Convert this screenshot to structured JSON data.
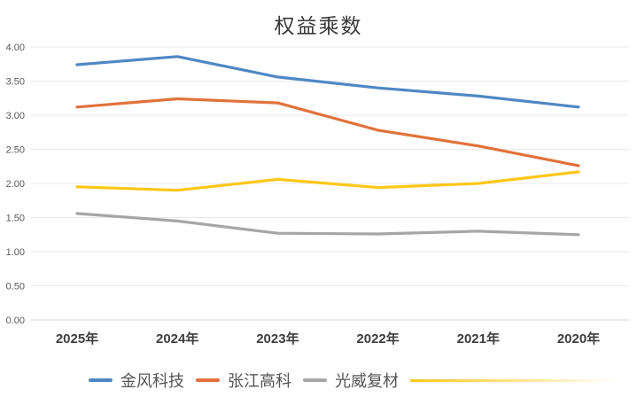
{
  "chart_data": {
    "type": "line",
    "title": "权益乘数",
    "categories": [
      "2025年",
      "2024年",
      "2023年",
      "2022年",
      "2021年",
      "2020年"
    ],
    "series": [
      {
        "name": "金风科技",
        "color": "#4f87c5",
        "values": [
          3.74,
          3.86,
          3.56,
          3.4,
          3.28,
          3.12
        ]
      },
      {
        "name": "张江高科",
        "color": "#e1723a",
        "values": [
          3.12,
          3.24,
          3.18,
          2.78,
          2.55,
          2.26
        ]
      },
      {
        "name": "光威复材",
        "color": "#a6a6a6",
        "values": [
          1.56,
          1.45,
          1.27,
          1.26,
          1.3,
          1.25
        ]
      },
      {
        "name": "",
        "color": "#ffc718",
        "values": [
          1.95,
          1.9,
          2.06,
          1.94,
          2.0,
          2.17
        ]
      }
    ],
    "ylim": [
      0,
      4
    ],
    "ytick_step": 0.5,
    "ytick_labels": [
      "0.00",
      "0.50",
      "1.00",
      "1.50",
      "2.00",
      "2.50",
      "3.00",
      "3.50",
      "4.00"
    ],
    "xlabel": "",
    "ylabel": "",
    "grid": true,
    "legend_position": "bottom",
    "colors": {
      "gridline": "#e9e9e9",
      "baseline": "#d5d5d5",
      "tick_text": "#595959",
      "x_label_text": "#3d3d3d",
      "title_text": "#3a3a3a",
      "legend_text": "#555555"
    }
  }
}
